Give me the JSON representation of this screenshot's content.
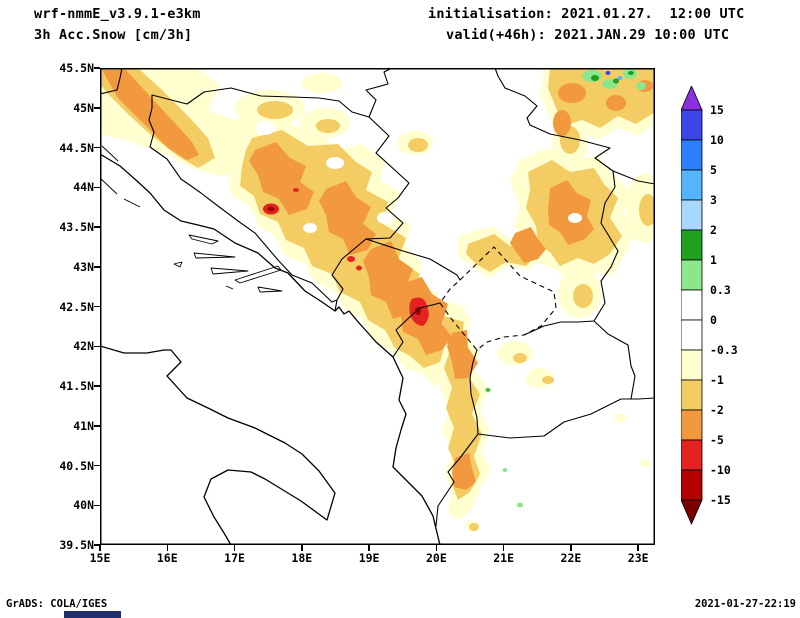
{
  "header": {
    "model": "wrf-nmmE_v3.9.1-e3km",
    "variable": "3h Acc.Snow [cm/3h]",
    "init_label": "initialisation: 2021.01.27.  12:00 UTC",
    "valid_label": "valid(+46h): 2021.JAN.29 10:00 UTC"
  },
  "axes": {
    "lat_labels": [
      "45.5N",
      "45N",
      "44.5N",
      "44N",
      "43.5N",
      "43N",
      "42.5N",
      "42N",
      "41.5N",
      "41N",
      "40.5N",
      "40N",
      "39.5N"
    ],
    "lon_labels": [
      "15E",
      "16E",
      "17E",
      "18E",
      "19E",
      "20E",
      "21E",
      "22E",
      "23E"
    ]
  },
  "colorbar": {
    "labels": [
      "15",
      "10",
      "5",
      "3",
      "2",
      "1",
      "0.3",
      "0",
      "-0.3",
      "-1",
      "-2",
      "-5",
      "-10",
      "-15"
    ],
    "segment_colors": [
      "#3c46e8",
      "#2e7fff",
      "#55b4ff",
      "#a8d8ff",
      "#1fa11f",
      "#8ce68c",
      "#ffffff",
      "#ffffff",
      "#ffffd0",
      "#f3cd63",
      "#f2993f",
      "#e32222",
      "#b30000"
    ],
    "arrow_top_color": "#8a30e0",
    "arrow_bottom_color": "#7a0000"
  },
  "footer": {
    "left": "GrADS: COLA/IGES",
    "right": "2021-01-27-22:19"
  },
  "chart_data": {
    "type": "heatmap",
    "subtype": "filled-contour-geographic-map",
    "title": "3h Acc.Snow [cm/3h]",
    "region": "Balkans / Adriatic",
    "lon_range_deg_e": [
      15,
      23.25
    ],
    "lat_range_deg_n": [
      39.5,
      45.5
    ],
    "contour_levels": [
      -15,
      -10,
      -5,
      -2,
      -1,
      -0.3,
      0,
      0.3,
      1,
      2,
      3,
      5,
      10,
      15
    ],
    "shading_summary": "Pale-yellow to orange band along Dinaric Alps (NW Croatia through Bosnia to Montenegro/Kosovo), red maxima near 17.5E/43.7N and 19.7E/42.5N, secondary band in east Serbia and along Albania-Macedonia border, green/blue specks over SW Romania near 45.4N 22-23E"
  },
  "map_colors": {
    "cream": "#ffffd0",
    "gold": "#f3cd63",
    "orange": "#f2993f",
    "red": "#e32222",
    "dark_red": "#a00000",
    "green_light": "#8ce68c",
    "green_dark": "#1f9e1f",
    "blue": "#3c46e8",
    "cyan": "#55b4ff"
  }
}
